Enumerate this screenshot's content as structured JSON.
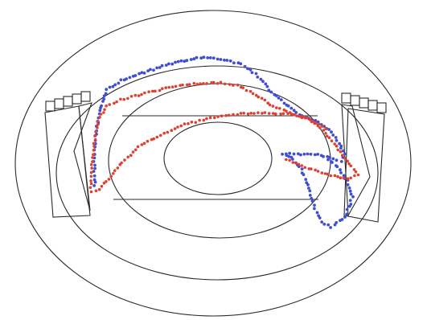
{
  "diagram": {
    "colors": {
      "background": "#ffffff",
      "outline": "#2a2a2a",
      "trace_blue": "#3f4fd0",
      "trace_red": "#e0402f"
    },
    "labels": []
  }
}
